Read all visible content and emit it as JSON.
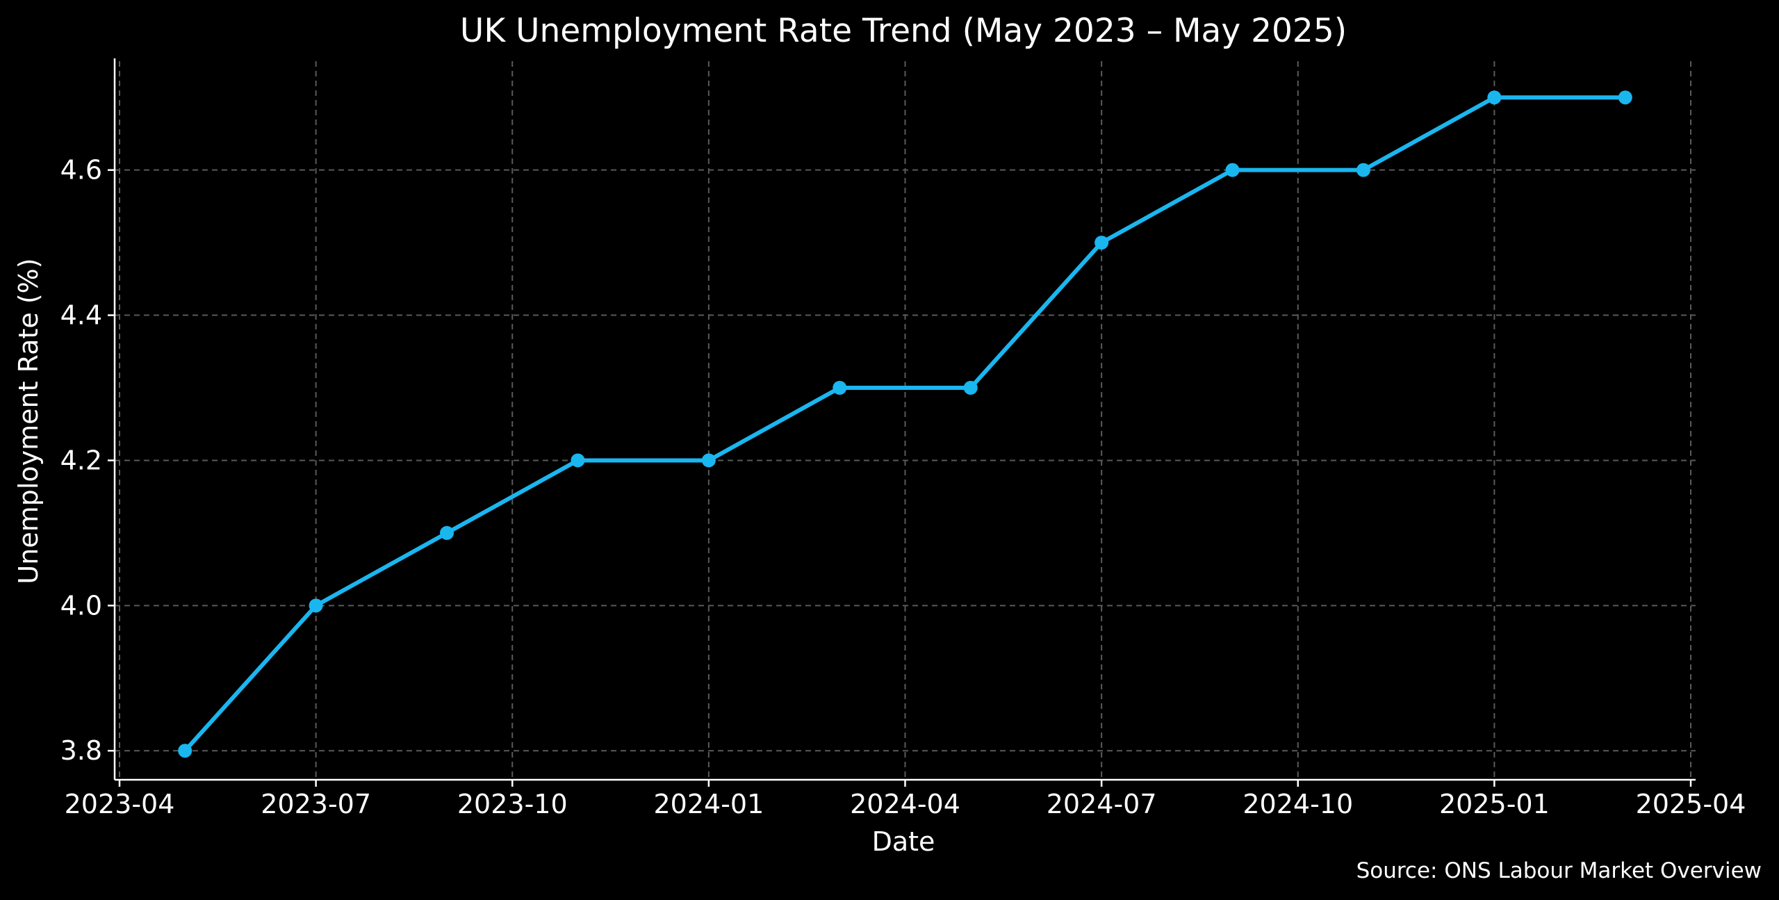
{
  "chart_data": {
    "type": "line",
    "title": "UK Unemployment Rate Trend (May 2023 – May 2025)",
    "xlabel": "Date",
    "ylabel": "Unemployment Rate (%)",
    "source": "Source: ONS Labour Market Overview",
    "x": [
      "2023-05",
      "2023-07",
      "2023-09",
      "2023-11",
      "2024-01",
      "2024-03",
      "2024-05",
      "2024-07",
      "2024-09",
      "2024-11",
      "2025-01",
      "2025-03"
    ],
    "series": [
      {
        "values": [
          3.8,
          4.0,
          4.1,
          4.2,
          4.2,
          4.3,
          4.3,
          4.5,
          4.6,
          4.6,
          4.7,
          4.7
        ],
        "color": "#1ab6f0"
      }
    ],
    "xlim": [
      "2023-04",
      "2025-04"
    ],
    "ylim": [
      3.76,
      4.75
    ],
    "x_ticks": [
      "2023-04",
      "2023-07",
      "2023-10",
      "2024-01",
      "2024-04",
      "2024-07",
      "2024-10",
      "2025-01",
      "2025-04"
    ],
    "y_ticks": [
      3.8,
      4.0,
      4.2,
      4.4,
      4.6
    ],
    "y_tick_labels": [
      "3.8",
      "4.0",
      "4.2",
      "4.4",
      "4.6"
    ],
    "grid": true,
    "background": "#000000",
    "text_color": "#ffffff",
    "grid_color": "#5a5a5a"
  }
}
